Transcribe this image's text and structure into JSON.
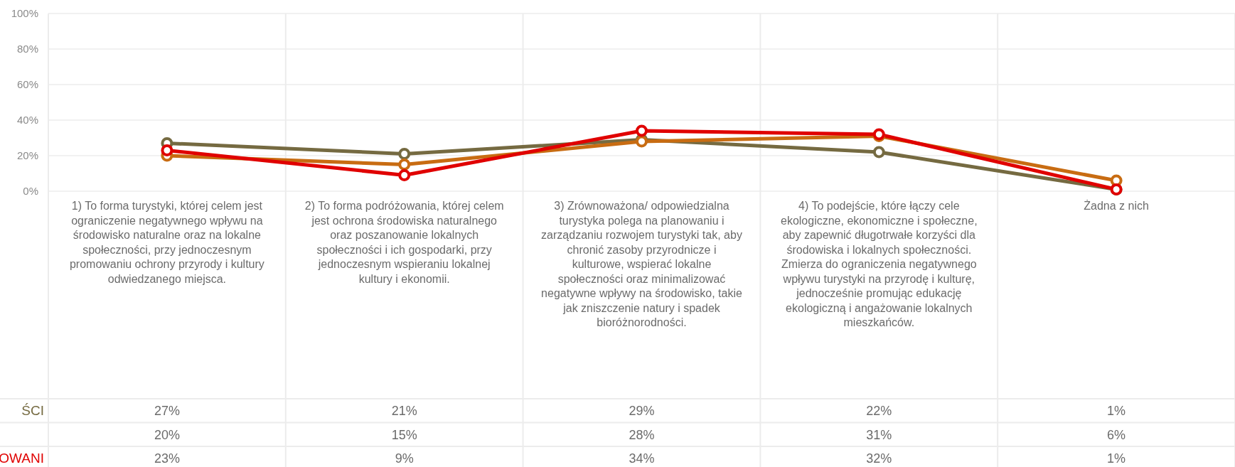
{
  "chart_data": {
    "type": "line",
    "categories": [
      "1) To forma turystyki, której celem jest ograniczenie negatywnego wpływu na środowisko naturalne oraz na lokalne społeczności, przy jednoczesnym promowaniu ochrony przyrody i kultury odwiedzanego miejsca.",
      "2) To forma podróżowania, której celem jest ochrona środowiska naturalnego oraz poszanowanie lokalnych społeczności i ich gospodarki, przy jednoczesnym wspieraniu lokalnej kultury i ekonomii.",
      "3) Zrównoważona/ odpowiedzialna turystyka polega na planowaniu i zarządzaniu rozwojem turystyki tak, aby chronić zasoby przyrodnicze i kulturowe, wspierać lokalne społeczności oraz minimalizować negatywne wpływy na środowisko, takie jak zniszczenie natury i spadek bioróżnorodności.",
      "4) To podejście, które łączy cele ekologiczne, ekonomiczne i społeczne, aby zapewnić długotrwałe korzyści dla środowiska i lokalnych społeczności. Zmierza do ograniczenia negatywnego wpływu turystyki na przyrodę i kulturę, jednocześnie promując edukację ekologiczną i angażowanie lokalnych mieszkańców.",
      "Żadna z nich"
    ],
    "series": [
      {
        "name": "ŚCI",
        "color": "#756a41",
        "values": [
          27,
          21,
          29,
          22,
          1
        ],
        "value_labels": [
          "27%",
          "21%",
          "29%",
          "22%",
          "1%"
        ]
      },
      {
        "color": "#c86c12",
        "values": [
          20,
          15,
          28,
          31,
          6
        ],
        "value_labels": [
          "20%",
          "15%",
          "28%",
          "31%",
          "6%"
        ]
      },
      {
        "name": "OWANI",
        "color": "#e00000",
        "values": [
          23,
          9,
          34,
          32,
          1
        ],
        "value_labels": [
          "23%",
          "9%",
          "34%",
          "32%",
          "1%"
        ]
      }
    ],
    "ylim": [
      0,
      100
    ],
    "yticks": [
      {
        "value": 0,
        "label": "0%"
      },
      {
        "value": 20,
        "label": "20%"
      },
      {
        "value": 40,
        "label": "40%"
      },
      {
        "value": 60,
        "label": "60%"
      },
      {
        "value": 80,
        "label": "80%"
      },
      {
        "value": 100,
        "label": "100%"
      }
    ],
    "grid": true,
    "marker": "circle",
    "line_style": "solid"
  }
}
